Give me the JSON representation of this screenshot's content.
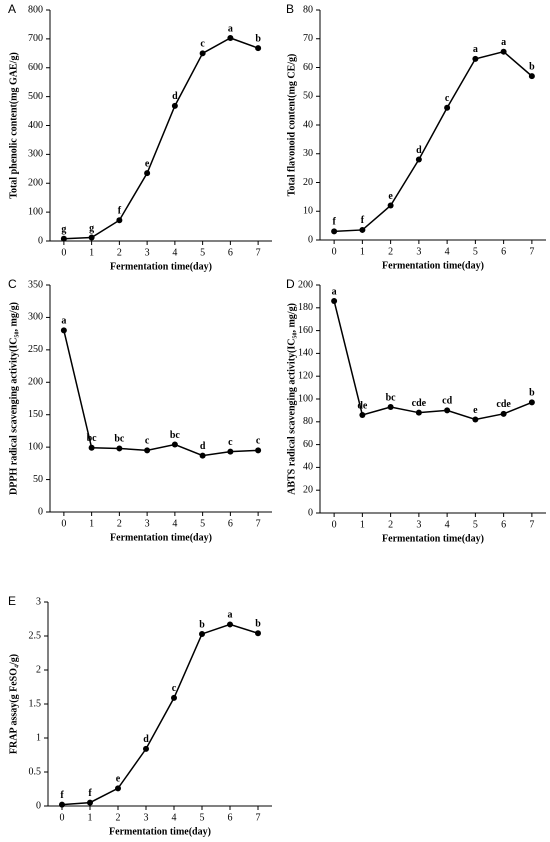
{
  "chart_data": [
    {
      "type": "line",
      "panel": "A",
      "ylabel": "Total phenolic content(mg GAE/g)",
      "xlabel": "Fermentation time(day)",
      "x": [
        0,
        1,
        2,
        3,
        4,
        5,
        6,
        7
      ],
      "values": [
        8,
        12,
        72,
        235,
        468,
        650,
        703,
        668
      ],
      "point_labels": [
        "g",
        "g",
        "f",
        "e",
        "d",
        "c",
        "a",
        "b"
      ],
      "xlim": [
        -0.5,
        7.5
      ],
      "xticks": [
        0,
        1,
        2,
        3,
        4,
        5,
        6,
        7
      ],
      "ylim": [
        0,
        800
      ],
      "yticks": [
        0,
        100,
        200,
        300,
        400,
        500,
        600,
        700,
        800
      ],
      "color": "#000000"
    },
    {
      "type": "line",
      "panel": "B",
      "ylabel": "Total flavonoid content(mg CE/g)",
      "xlabel": "Fermentation time(day)",
      "x": [
        0,
        1,
        2,
        3,
        4,
        5,
        6,
        7
      ],
      "values": [
        3,
        3.5,
        12,
        28,
        46,
        63,
        65.5,
        57
      ],
      "point_labels": [
        "f",
        "f",
        "e",
        "d",
        "c",
        "a",
        "a",
        "b"
      ],
      "xlim": [
        -0.5,
        7.5
      ],
      "xticks": [
        0,
        1,
        2,
        3,
        4,
        5,
        6,
        7
      ],
      "ylim": [
        0,
        80
      ],
      "yticks": [
        0,
        10,
        20,
        30,
        40,
        50,
        60,
        70,
        80
      ],
      "color": "#000000"
    },
    {
      "type": "line",
      "panel": "C",
      "ylabel": "DPPH radical scavenging activity(IC₅₀, mg/g)",
      "xlabel": "Fermentation time(day)",
      "x": [
        0,
        1,
        2,
        3,
        4,
        5,
        6,
        7
      ],
      "values": [
        280,
        99,
        98,
        95,
        104,
        87,
        93,
        95
      ],
      "point_labels": [
        "a",
        "bc",
        "bc",
        "c",
        "bc",
        "d",
        "c",
        "c"
      ],
      "xlim": [
        -0.5,
        7.5
      ],
      "xticks": [
        0,
        1,
        2,
        3,
        4,
        5,
        6,
        7
      ],
      "ylim": [
        0,
        350
      ],
      "yticks": [
        0,
        50,
        100,
        150,
        200,
        250,
        300,
        350
      ],
      "color": "#000000"
    },
    {
      "type": "line",
      "panel": "D",
      "ylabel": "ABTS radical scavenging activity(IC₅₀, mg/g)",
      "xlabel": "Fermentation time(day)",
      "x": [
        0,
        1,
        2,
        3,
        4,
        5,
        6,
        7
      ],
      "values": [
        186,
        86,
        93,
        88,
        90,
        82,
        87,
        97
      ],
      "point_labels": [
        "a",
        "de",
        "bc",
        "cde",
        "cd",
        "e",
        "cde",
        "b"
      ],
      "xlim": [
        -0.5,
        7.5
      ],
      "xticks": [
        0,
        1,
        2,
        3,
        4,
        5,
        6,
        7
      ],
      "ylim": [
        0,
        200
      ],
      "yticks": [
        0,
        20,
        40,
        60,
        80,
        100,
        120,
        140,
        160,
        180,
        200
      ],
      "color": "#000000"
    },
    {
      "type": "line",
      "panel": "E",
      "ylabel": "FRAP assay(g FeSO₄/g)",
      "xlabel": "Fermentation time(day)",
      "x": [
        0,
        1,
        2,
        3,
        4,
        5,
        6,
        7
      ],
      "values": [
        0.02,
        0.05,
        0.26,
        0.84,
        1.59,
        2.53,
        2.67,
        2.54
      ],
      "point_labels": [
        "f",
        "f",
        "e",
        "d",
        "c",
        "b",
        "a",
        "b"
      ],
      "xlim": [
        -0.5,
        7.5
      ],
      "xticks": [
        0,
        1,
        2,
        3,
        4,
        5,
        6,
        7
      ],
      "ylim": [
        0,
        3
      ],
      "yticks": [
        0,
        0.5,
        1,
        1.5,
        2,
        2.5,
        3
      ],
      "color": "#000000"
    }
  ]
}
